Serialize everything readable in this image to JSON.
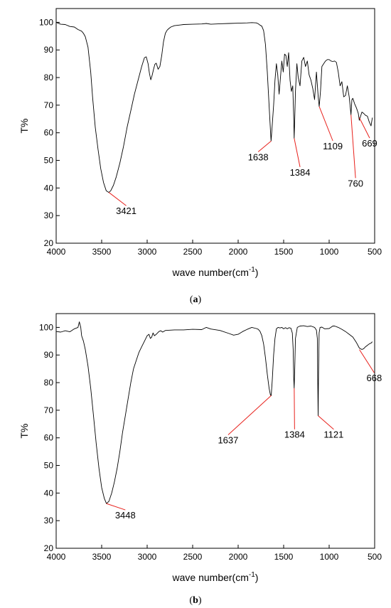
{
  "chart_data": [
    {
      "type": "line",
      "panel_label": "a",
      "xlabel": "wave number(cm",
      "xlabel_sup": "-1",
      "xlabel_close": ")",
      "ylabel": "T%",
      "xlim": [
        4000,
        500
      ],
      "ylim": [
        20,
        105
      ],
      "xticks": [
        4000,
        3500,
        3000,
        2500,
        2000,
        1500,
        1000,
        500
      ],
      "yticks": [
        20,
        30,
        40,
        50,
        60,
        70,
        80,
        90,
        100
      ],
      "grid": false,
      "series": [
        {
          "x": [
            4000,
            3950,
            3900,
            3850,
            3800,
            3760,
            3720,
            3700,
            3680,
            3650,
            3620,
            3600,
            3570,
            3540,
            3510,
            3480,
            3450,
            3421,
            3400,
            3370,
            3340,
            3300,
            3260,
            3220,
            3180,
            3140,
            3100,
            3060,
            3030,
            3010,
            2990,
            2975,
            2960,
            2945,
            2930,
            2915,
            2900,
            2880,
            2860,
            2840,
            2820,
            2800,
            2780,
            2760,
            2740,
            2700,
            2650,
            2600,
            2500,
            2400,
            2350,
            2300,
            2200,
            2100,
            2000,
            1900,
            1850,
            1800,
            1780,
            1760,
            1740,
            1720,
            1700,
            1680,
            1660,
            1645,
            1638,
            1625,
            1610,
            1595,
            1580,
            1565,
            1550,
            1535,
            1520,
            1505,
            1490,
            1475,
            1460,
            1445,
            1430,
            1415,
            1400,
            1390,
            1384,
            1378,
            1370,
            1355,
            1340,
            1320,
            1300,
            1280,
            1260,
            1240,
            1220,
            1200,
            1180,
            1160,
            1140,
            1120,
            1109,
            1095,
            1080,
            1060,
            1040,
            1020,
            1000,
            980,
            960,
            940,
            920,
            900,
            880,
            860,
            840,
            820,
            800,
            780,
            770,
            760,
            750,
            740,
            720,
            700,
            680,
            669,
            655,
            640,
            620,
            600,
            580,
            560,
            540,
            525
          ],
          "y": [
            100,
            99.3,
            99.2,
            98.5,
            98.3,
            97.4,
            96.8,
            96,
            94.8,
            91,
            82,
            73,
            62,
            54,
            47,
            42,
            39,
            38.4,
            39,
            41,
            44,
            49,
            55,
            62,
            68,
            74,
            79,
            84,
            87.2,
            87.5,
            85,
            81.5,
            79.2,
            80.8,
            83,
            84.8,
            85.2,
            83,
            84,
            88,
            93,
            96,
            97.2,
            97.8,
            98.3,
            98.8,
            99,
            99.2,
            99.3,
            99.4,
            99.6,
            99.3,
            99.5,
            99.6,
            99.7,
            99.8,
            99.9,
            99.8,
            99.5,
            99,
            98.6,
            97,
            92,
            82,
            70,
            61,
            57,
            63,
            70,
            79,
            85,
            81,
            74,
            80,
            86,
            82,
            88.5,
            88,
            84,
            89,
            79,
            75,
            77,
            66,
            58,
            65,
            75,
            85,
            80,
            77,
            86,
            87.3,
            84,
            86,
            81,
            79,
            76,
            72,
            82,
            73,
            69.5,
            75,
            84,
            85,
            86,
            86.5,
            86.5,
            86,
            85.8,
            86,
            85.5,
            82,
            77,
            78.5,
            73,
            73.5,
            77,
            73,
            70,
            66.5,
            72,
            72.5,
            70.5,
            69,
            67,
            64.5,
            66,
            67.5,
            67,
            66.3,
            66,
            64,
            62.5,
            65.5
          ]
        }
      ],
      "annotations": [
        {
          "label": "3421",
          "x": 3421,
          "y": 38.4,
          "label_x": 3230,
          "label_y": 30.5
        },
        {
          "label": "1638",
          "x": 1638,
          "y": 57,
          "label_x": 1780,
          "label_y": 50
        },
        {
          "label": "1384",
          "x": 1384,
          "y": 58,
          "label_x": 1320,
          "label_y": 44.5
        },
        {
          "label": "1109",
          "x": 1109,
          "y": 69.5,
          "label_x": 960,
          "label_y": 54
        },
        {
          "label": "760",
          "x": 760,
          "y": 66.5,
          "label_x": 710,
          "label_y": 40.5
        },
        {
          "label": "669",
          "x": 669,
          "y": 65.5,
          "label_x": 555,
          "label_y": 55
        }
      ]
    },
    {
      "type": "line",
      "panel_label": "b",
      "xlabel": "wave number(cm",
      "xlabel_sup": "-1",
      "xlabel_close": ")",
      "ylabel": "T%",
      "xlim": [
        4000,
        500
      ],
      "ylim": [
        20,
        105
      ],
      "xticks": [
        4000,
        3500,
        3000,
        2500,
        2000,
        1500,
        1000,
        500
      ],
      "yticks": [
        20,
        30,
        40,
        50,
        60,
        70,
        80,
        90,
        100
      ],
      "grid": false,
      "series": [
        {
          "x": [
            4000,
            3950,
            3900,
            3850,
            3800,
            3760,
            3745,
            3730,
            3720,
            3700,
            3680,
            3650,
            3620,
            3590,
            3560,
            3530,
            3500,
            3470,
            3448,
            3420,
            3390,
            3360,
            3330,
            3300,
            3270,
            3240,
            3210,
            3180,
            3150,
            3120,
            3090,
            3060,
            3030,
            3000,
            2980,
            2965,
            2950,
            2935,
            2920,
            2900,
            2870,
            2850,
            2830,
            2800,
            2750,
            2700,
            2600,
            2500,
            2400,
            2350,
            2300,
            2200,
            2100,
            2050,
            2000,
            1950,
            1900,
            1850,
            1800,
            1780,
            1760,
            1740,
            1720,
            1700,
            1680,
            1660,
            1645,
            1637,
            1625,
            1610,
            1595,
            1580,
            1560,
            1540,
            1520,
            1500,
            1480,
            1460,
            1440,
            1420,
            1405,
            1395,
            1390,
            1384,
            1378,
            1370,
            1350,
            1320,
            1280,
            1240,
            1200,
            1160,
            1140,
            1130,
            1125,
            1121,
            1117,
            1110,
            1100,
            1080,
            1050,
            1000,
            960,
            940,
            900,
            860,
            820,
            780,
            740,
            700,
            668,
            640,
            620,
            600,
            580,
            560,
            540,
            525
          ],
          "y": [
            98.5,
            98.3,
            98.8,
            98.4,
            99.5,
            100,
            102,
            100,
            97,
            95,
            92,
            86,
            78,
            68,
            58,
            49,
            42,
            38,
            36.2,
            37,
            40,
            44,
            49,
            55,
            62,
            68,
            74,
            80,
            85,
            88,
            91,
            93,
            95,
            97,
            97.5,
            96,
            96.5,
            98,
            97,
            97.5,
            98.5,
            98.8,
            98.3,
            98.9,
            99,
            99.1,
            99.1,
            99.3,
            99.2,
            100,
            99.4,
            98.9,
            97.8,
            97.2,
            97.5,
            98.5,
            99.3,
            100,
            99.6,
            99.3,
            98.6,
            97,
            94,
            89,
            83,
            78,
            75.5,
            75.3,
            81,
            90,
            96,
            99.5,
            100,
            99.8,
            100,
            99.5,
            99.9,
            99.5,
            99.9,
            99.7,
            98,
            92,
            82,
            78,
            85,
            96,
            100,
            100.5,
            100.6,
            100.3,
            100.5,
            100,
            99,
            96,
            80,
            68,
            82,
            98,
            100,
            100.1,
            99.5,
            99.6,
            100.5,
            100.5,
            100,
            99.3,
            98.5,
            97.5,
            96.5,
            94.5,
            92.5,
            92,
            92.3,
            93,
            93.5,
            94,
            94.3,
            94.8
          ]
        }
      ],
      "annotations": [
        {
          "label": "3448",
          "x": 3448,
          "y": 36.2,
          "label_x": 3240,
          "label_y": 30.8
        },
        {
          "label": "1637",
          "x": 1637,
          "y": 75.3,
          "label_x": 2110,
          "label_y": 58
        },
        {
          "label": "1384",
          "x": 1384,
          "y": 78,
          "label_x": 1380,
          "label_y": 60
        },
        {
          "label": "1121",
          "x": 1121,
          "y": 68,
          "label_x": 950,
          "label_y": 60
        },
        {
          "label": "668",
          "x": 668,
          "y": 92,
          "label_x": 505,
          "label_y": 80.5
        }
      ]
    }
  ]
}
